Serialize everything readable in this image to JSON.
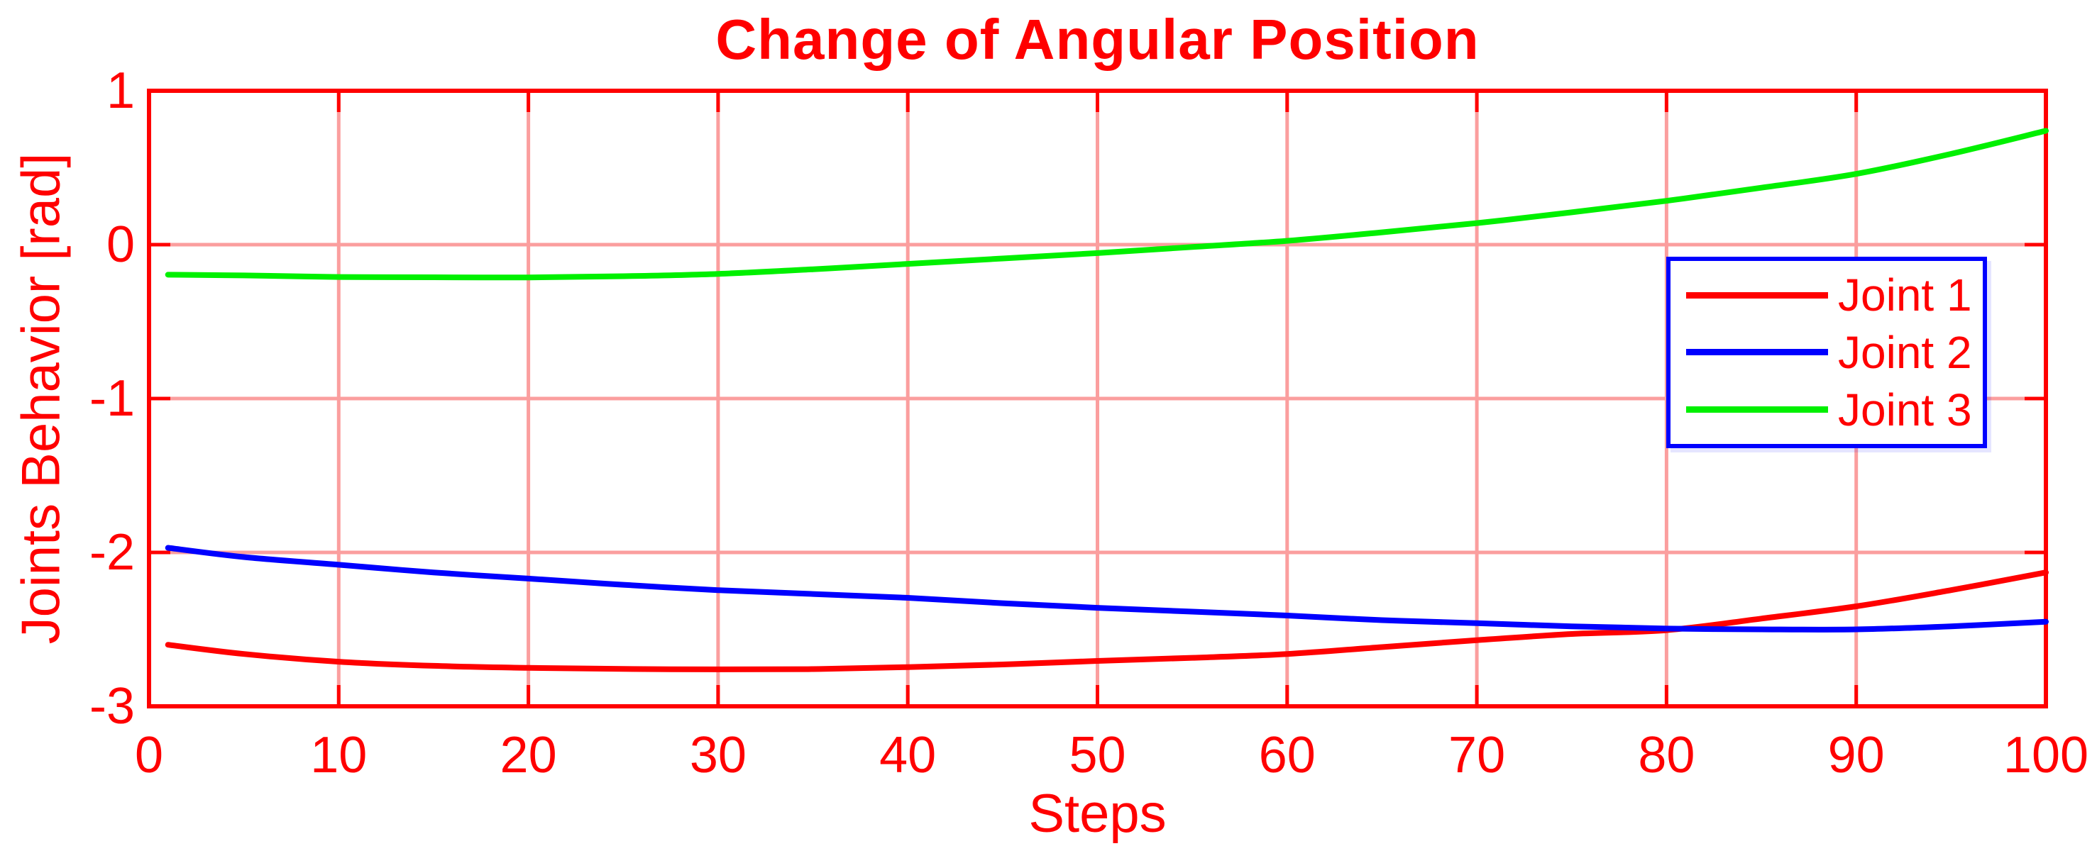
{
  "title": "Change of Angular Position",
  "colors": {
    "accent_text": "#ff0000",
    "axis_box": "#ff0000",
    "grid": "#fb9e9e",
    "legend_border": "#0000ff",
    "background": "#ffffff",
    "series_red": "#ff0000",
    "series_blue": "#0000ff",
    "series_green": "#00f000"
  },
  "chart_data": {
    "type": "line",
    "title": "Change of Angular Position",
    "xlabel": "Steps",
    "ylabel": "Joints Behavior [rad]",
    "xlim": [
      0,
      100
    ],
    "ylim": [
      -3,
      1
    ],
    "x_ticks": [
      0,
      10,
      20,
      30,
      40,
      50,
      60,
      70,
      80,
      90,
      100
    ],
    "y_ticks": [
      1,
      0,
      -1,
      -2,
      -3
    ],
    "x_tick_labels": [
      "0",
      "10",
      "20",
      "30",
      "40",
      "50",
      "60",
      "70",
      "80",
      "90",
      "100"
    ],
    "y_tick_labels": [
      "1",
      "0",
      "-1",
      "-2",
      "-3"
    ],
    "grid": true,
    "legend_position": "upper-right-inside",
    "x": [
      1,
      5,
      10,
      15,
      20,
      25,
      30,
      35,
      40,
      45,
      50,
      55,
      60,
      65,
      70,
      75,
      80,
      85,
      90,
      95,
      100
    ],
    "series": [
      {
        "name": "Joint 1",
        "color": "#ff0000",
        "values": [
          -2.6,
          -2.66,
          -2.71,
          -2.737,
          -2.75,
          -2.757,
          -2.76,
          -2.758,
          -2.745,
          -2.728,
          -2.705,
          -2.685,
          -2.66,
          -2.615,
          -2.57,
          -2.53,
          -2.505,
          -2.43,
          -2.35,
          -2.245,
          -2.13
        ]
      },
      {
        "name": "Joint 2",
        "color": "#0000ff",
        "values": [
          -1.97,
          -2.03,
          -2.08,
          -2.13,
          -2.17,
          -2.21,
          -2.245,
          -2.27,
          -2.295,
          -2.33,
          -2.36,
          -2.385,
          -2.41,
          -2.44,
          -2.46,
          -2.48,
          -2.495,
          -2.5,
          -2.5,
          -2.48,
          -2.45
        ]
      },
      {
        "name": "Joint 3",
        "color": "#00f000",
        "values": [
          -0.195,
          -0.2,
          -0.21,
          -0.212,
          -0.213,
          -0.205,
          -0.19,
          -0.16,
          -0.125,
          -0.09,
          -0.055,
          -0.015,
          0.025,
          0.08,
          0.14,
          0.21,
          0.285,
          0.37,
          0.46,
          0.59,
          0.74
        ]
      }
    ]
  }
}
